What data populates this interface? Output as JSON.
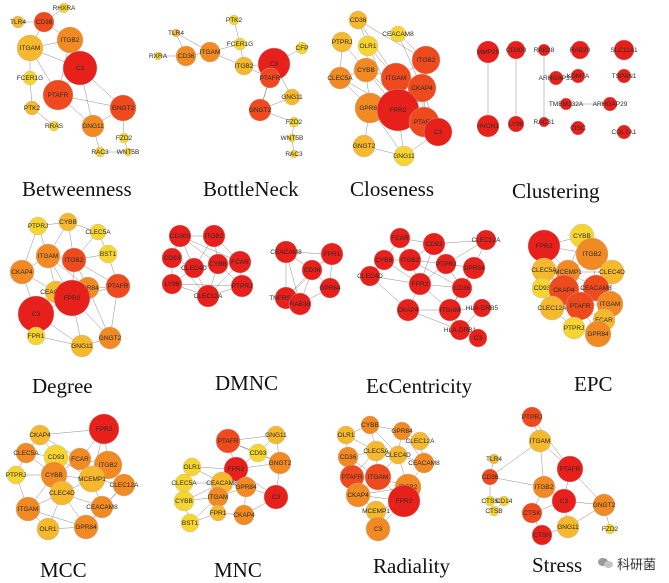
{
  "colors": {
    "red": "#e8201b",
    "orange_red": "#ee4a1e",
    "orange": "#f28a24",
    "amber": "#f6b82c",
    "yellow": "#f7d531",
    "edge": "#555555"
  },
  "panels": [
    {
      "label": "Betweenness",
      "nodes": [
        {
          "label": "RHXRA",
          "color": "#f7d531"
        },
        {
          "label": "TLR4",
          "color": "#f6b82c"
        },
        {
          "label": "CD36",
          "color": "#ee4a1e"
        },
        {
          "label": "ITGAM",
          "color": "#f6b82c"
        },
        {
          "label": "ITGB2",
          "color": "#f28a24"
        },
        {
          "label": "C3",
          "color": "#e8201b"
        },
        {
          "label": "FCER1G",
          "color": "#f7d531"
        },
        {
          "label": "PTAFR",
          "color": "#ee4a1e"
        },
        {
          "label": "PTK2",
          "color": "#f6b82c"
        },
        {
          "label": "RRAS",
          "color": "#f7d531"
        },
        {
          "label": "GNGT2",
          "color": "#ee4a1e"
        },
        {
          "label": "GNG11",
          "color": "#f28a24"
        },
        {
          "label": "FZD2",
          "color": "#f7d531"
        },
        {
          "label": "RAC3",
          "color": "#f7d531"
        },
        {
          "label": "WNT5B",
          "color": "#f7d531"
        }
      ]
    },
    {
      "label": "BottleNeck",
      "nodes": [
        {
          "label": "TLR4",
          "color": "#f6b82c"
        },
        {
          "label": "PTK2",
          "color": "#f7d531"
        },
        {
          "label": "RXRA",
          "color": "#f7d531"
        },
        {
          "label": "CD36",
          "color": "#f28a24"
        },
        {
          "label": "ITGAM",
          "color": "#f28a24"
        },
        {
          "label": "FCER1G",
          "color": "#f7d531"
        },
        {
          "label": "CFP",
          "color": "#f7d531"
        },
        {
          "label": "ITGB2",
          "color": "#f6b82c"
        },
        {
          "label": "C3",
          "color": "#e8201b"
        },
        {
          "label": "PTAFR",
          "color": "#ee4a1e"
        },
        {
          "label": "GNGT2",
          "color": "#ee4a1e"
        },
        {
          "label": "GNG11",
          "color": "#f6b82c"
        },
        {
          "label": "FZD2",
          "color": "#f7d531"
        },
        {
          "label": "WNT5B",
          "color": "#f7d531"
        },
        {
          "label": "RAC3",
          "color": "#f7d531"
        }
      ]
    },
    {
      "label": "Closeness",
      "nodes": [
        {
          "label": "CD36",
          "color": "#f6b82c"
        },
        {
          "label": "CEACAM8",
          "color": "#f7d531"
        },
        {
          "label": "PTPRJ",
          "color": "#f6b82c"
        },
        {
          "label": "OLR1",
          "color": "#f7d531"
        },
        {
          "label": "ITGB2",
          "color": "#ee4a1e"
        },
        {
          "label": "CLEC5A",
          "color": "#f28a24"
        },
        {
          "label": "CYBB",
          "color": "#f28a24"
        },
        {
          "label": "ITGAM",
          "color": "#ee4a1e"
        },
        {
          "label": "CKAP4",
          "color": "#ee4a1e"
        },
        {
          "label": "GPR84",
          "color": "#f28a24"
        },
        {
          "label": "FPR2",
          "color": "#e8201b"
        },
        {
          "label": "PTAFR",
          "color": "#ee4a1e"
        },
        {
          "label": "C3",
          "color": "#e8201b"
        },
        {
          "label": "GNGT2",
          "color": "#f6b82c"
        },
        {
          "label": "GNG11",
          "color": "#f7d531"
        }
      ]
    },
    {
      "label": "Clustering",
      "nodes": [
        {
          "label": "MMP25",
          "color": "#e8201b"
        },
        {
          "label": "CD300",
          "color": "#e8201b"
        },
        {
          "label": "RAB38",
          "color": "#e8201b"
        },
        {
          "label": "RAB20",
          "color": "#e8201b"
        },
        {
          "label": "SLC11A1",
          "color": "#e8201b"
        },
        {
          "label": "ARHGAP31",
          "color": "#e8201b"
        },
        {
          "label": "KDM7A",
          "color": "#e8201b"
        },
        {
          "label": "TSPAN1",
          "color": "#e8201b"
        },
        {
          "label": "TMEM132A",
          "color": "#e8201b"
        },
        {
          "label": "ARHGAP29",
          "color": "#e8201b"
        },
        {
          "label": "HVCN1",
          "color": "#e8201b"
        },
        {
          "label": "LY96",
          "color": "#e8201b"
        },
        {
          "label": "RAC31",
          "color": "#e8201b"
        },
        {
          "label": "CISC",
          "color": "#e8201b"
        },
        {
          "label": "COL7A1",
          "color": "#e8201b"
        }
      ]
    },
    {
      "label": "Degree",
      "nodes": [
        {
          "label": "CYBB",
          "color": "#f6b82c"
        },
        {
          "label": "PTPRJ",
          "color": "#f7d531"
        },
        {
          "label": "CLEC5A",
          "color": "#f7d531"
        },
        {
          "label": "ITGAM",
          "color": "#f28a24"
        },
        {
          "label": "ITGB2",
          "color": "#ee4a1e"
        },
        {
          "label": "BST1",
          "color": "#f7d531"
        },
        {
          "label": "CKAP4",
          "color": "#f28a24"
        },
        {
          "label": "CEACAM8",
          "color": "#f6b82c"
        },
        {
          "label": "GPR84",
          "color": "#f28a24"
        },
        {
          "label": "PTAFR",
          "color": "#ee4a1e"
        },
        {
          "label": "FPR2",
          "color": "#e8201b"
        },
        {
          "label": "C3",
          "color": "#e8201b"
        },
        {
          "label": "FPR1",
          "color": "#f7d531"
        },
        {
          "label": "GNG11",
          "color": "#f6b82c"
        },
        {
          "label": "GNGT2",
          "color": "#f28a24"
        }
      ]
    },
    {
      "label": "DMNC",
      "nodes": [
        {
          "label": "CD300",
          "color": "#e8201b"
        },
        {
          "label": "ITGB2",
          "color": "#e8201b"
        },
        {
          "label": "CD93",
          "color": "#e8201b"
        },
        {
          "label": "CLEC4D",
          "color": "#e8201b"
        },
        {
          "label": "CYBB",
          "color": "#e8201b"
        },
        {
          "label": "FCAR",
          "color": "#e8201b"
        },
        {
          "label": "LY96",
          "color": "#e8201b"
        },
        {
          "label": "CLEC12A",
          "color": "#e8201b"
        },
        {
          "label": "PTPRJ",
          "color": "#e8201b"
        },
        {
          "label": "CEACAM8",
          "color": "#e8201b"
        },
        {
          "label": "FPR1",
          "color": "#e8201b"
        },
        {
          "label": "CD36",
          "color": "#e8201b"
        },
        {
          "label": "TNFRSF1B",
          "color": "#e8201b"
        },
        {
          "label": "GPR84",
          "color": "#e8201b"
        },
        {
          "label": "RAB38",
          "color": "#e8201b"
        }
      ]
    },
    {
      "label": "EcCentricity",
      "nodes": [
        {
          "label": "CLEC12A",
          "color": "#e8201b"
        },
        {
          "label": "CD93",
          "color": "#e8201b"
        },
        {
          "label": "FCAR",
          "color": "#e8201b"
        },
        {
          "label": "CYBB",
          "color": "#e8201b"
        },
        {
          "label": "ITGB2",
          "color": "#e8201b"
        },
        {
          "label": "PTPRJ",
          "color": "#e8201b"
        },
        {
          "label": "GPR84",
          "color": "#e8201b"
        },
        {
          "label": "CLEC4D",
          "color": "#e8201b"
        },
        {
          "label": "FPR2",
          "color": "#e8201b"
        },
        {
          "label": "CD36",
          "color": "#e8201b"
        },
        {
          "label": "CKAP4",
          "color": "#e8201b"
        },
        {
          "label": "ITGAM",
          "color": "#e8201b"
        },
        {
          "label": "HLA-DRB5",
          "color": "#e8201b"
        },
        {
          "label": "HLA-DRB1",
          "color": "#e8201b"
        },
        {
          "label": "C3",
          "color": "#e8201b"
        }
      ]
    },
    {
      "label": "EPC",
      "nodes": [
        {
          "label": "FPR2",
          "color": "#e8201b"
        },
        {
          "label": "CYBB",
          "color": "#f7d531"
        },
        {
          "label": "ITGB2",
          "color": "#f28a24"
        },
        {
          "label": "CLEC5A",
          "color": "#f6b82c"
        },
        {
          "label": "MCEMP1",
          "color": "#f28a24"
        },
        {
          "label": "CLEC4D",
          "color": "#f6b82c"
        },
        {
          "label": "CD93",
          "color": "#f7d531"
        },
        {
          "label": "CKAP4",
          "color": "#ee4a1e"
        },
        {
          "label": "CEACAM8",
          "color": "#ee4a1e"
        },
        {
          "label": "ITGAM",
          "color": "#f28a24"
        },
        {
          "label": "CLEC12A",
          "color": "#f6b82c"
        },
        {
          "label": "PTAFR",
          "color": "#ee4a1e"
        },
        {
          "label": "FCAR",
          "color": "#f6b82c"
        },
        {
          "label": "PTPRJ",
          "color": "#f7d531"
        },
        {
          "label": "GPR84",
          "color": "#f28a24"
        }
      ]
    },
    {
      "label": "MCC",
      "nodes": [
        {
          "label": "FPR2",
          "color": "#e8201b"
        },
        {
          "label": "CKAP4",
          "color": "#f6b82c"
        },
        {
          "label": "CLEC5A",
          "color": "#f28a24"
        },
        {
          "label": "CD93",
          "color": "#f7d531"
        },
        {
          "label": "FCAR",
          "color": "#f28a24"
        },
        {
          "label": "ITGB2",
          "color": "#f28a24"
        },
        {
          "label": "PTPRJ",
          "color": "#f7d531"
        },
        {
          "label": "CYBB",
          "color": "#f28a24"
        },
        {
          "label": "MCEMP1",
          "color": "#f6b82c"
        },
        {
          "label": "CLEC12A",
          "color": "#f28a24"
        },
        {
          "label": "CLEC4D",
          "color": "#f6b82c"
        },
        {
          "label": "ITGAM",
          "color": "#f28a24"
        },
        {
          "label": "CEACAM8",
          "color": "#f28a24"
        },
        {
          "label": "OLR1",
          "color": "#f6b82c"
        },
        {
          "label": "GPR84",
          "color": "#f28a24"
        }
      ]
    },
    {
      "label": "MNC",
      "nodes": [
        {
          "label": "PTAFR",
          "color": "#ee4a1e"
        },
        {
          "label": "GNG11",
          "color": "#f6b82c"
        },
        {
          "label": "CD93",
          "color": "#f7d531"
        },
        {
          "label": "OLR1",
          "color": "#f7d531"
        },
        {
          "label": "FPR2",
          "color": "#e8201b"
        },
        {
          "label": "GNGT2",
          "color": "#f28a24"
        },
        {
          "label": "CLEC5A",
          "color": "#f7d531"
        },
        {
          "label": "CEACAM8",
          "color": "#f6b82c"
        },
        {
          "label": "CYBB",
          "color": "#f7d531"
        },
        {
          "label": "ITGAM",
          "color": "#f28a24"
        },
        {
          "label": "GPR84",
          "color": "#f28a24"
        },
        {
          "label": "C3",
          "color": "#e8201b"
        },
        {
          "label": "BST1",
          "color": "#f7d531"
        },
        {
          "label": "FPR1",
          "color": "#f6b82c"
        },
        {
          "label": "CKAP4",
          "color": "#f28a24"
        }
      ]
    },
    {
      "label": "Radiality",
      "nodes": [
        {
          "label": "CYBB",
          "color": "#f28a24"
        },
        {
          "label": "GPR84",
          "color": "#f28a24"
        },
        {
          "label": "OLR1",
          "color": "#f6b82c"
        },
        {
          "label": "CLEC12A",
          "color": "#f6b82c"
        },
        {
          "label": "CD36",
          "color": "#f28a24"
        },
        {
          "label": "CLEC5A",
          "color": "#f6b82c"
        },
        {
          "label": "CLEC4D",
          "color": "#f6b82c"
        },
        {
          "label": "CEACAM8",
          "color": "#f28a24"
        },
        {
          "label": "PTAFR",
          "color": "#ee4a1e"
        },
        {
          "label": "ITGAM",
          "color": "#ee4a1e"
        },
        {
          "label": "ITGB2",
          "color": "#f28a24"
        },
        {
          "label": "CKAP4",
          "color": "#f28a24"
        },
        {
          "label": "FPR2",
          "color": "#e8201b"
        },
        {
          "label": "MCEMP1",
          "color": "#f6b82c"
        },
        {
          "label": "C3",
          "color": "#f28a24"
        }
      ]
    },
    {
      "label": "Stress",
      "nodes": [
        {
          "label": "PTPRJ",
          "color": "#ee4a1e"
        },
        {
          "label": "TLR4",
          "color": "#f6b82c"
        },
        {
          "label": "ITGAM",
          "color": "#f6b82c"
        },
        {
          "label": "CD36",
          "color": "#ee4a1e"
        },
        {
          "label": "PTAFR",
          "color": "#e8201b"
        },
        {
          "label": "CTSS",
          "color": "#f7d531"
        },
        {
          "label": "CD14",
          "color": "#f7d531"
        },
        {
          "label": "ITGB2",
          "color": "#f28a24"
        },
        {
          "label": "CTSB",
          "color": "#f7d531"
        },
        {
          "label": "C3",
          "color": "#e8201b"
        },
        {
          "label": "GNGT2",
          "color": "#f28a24"
        },
        {
          "label": "CTSK",
          "color": "#ee4a1e"
        },
        {
          "label": "GNG11",
          "color": "#f6b82c"
        },
        {
          "label": "FZD2",
          "color": "#f7d531"
        },
        {
          "label": "CTSH",
          "color": "#e8201b"
        }
      ]
    }
  ],
  "watermark": {
    "icon": "wechat-icon",
    "text": "科研菌"
  }
}
